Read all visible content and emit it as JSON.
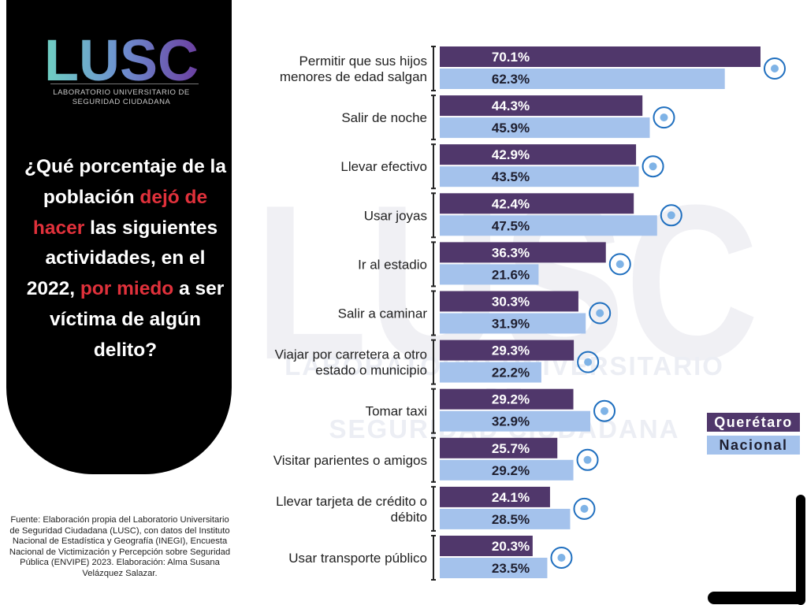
{
  "logo": {
    "text": "LUSC",
    "subtitle": "LABORATORIO UNIVERSITARIO DE SEGURIDAD CIUDADANA"
  },
  "question": {
    "part1": "¿Qué porcentaje de la población",
    "highlight1": "dejó de hacer",
    "part2": "las siguientes actividades, en el 2022,",
    "highlight2": "por miedo",
    "part3": "a ser víctima de algún delito?"
  },
  "source": "Fuente: Elaboración propia del Laboratorio Universitario de Seguridad Ciudadana (LUSC), con datos del Instituto Nacional de Estadística y Geografía (INEGI), Encuesta Nacional de Victimización y Percepción sobre Seguridad Pública (ENVIPE) 2023. Elaboración: Alma Susana Velázquez Salazar.",
  "watermark": {
    "line1": "LABORATORIO UNIVERSITARIO DE",
    "line2": "SEGURIDAD CIUDADANA"
  },
  "colors": {
    "queretaro": "#50376b",
    "nacional": "#a4c2ec",
    "highlight": "#e0313b"
  },
  "chart_data": {
    "type": "bar",
    "orientation": "horizontal",
    "title": "¿Qué porcentaje de la población dejó de hacer las siguientes actividades, en el 2022, por miedo a ser víctima de algún delito?",
    "categories": [
      "Permitir que sus hijos menores de edad salgan",
      "Salir de noche",
      "Llevar efectivo",
      "Usar joyas",
      "Ir al estadio",
      "Salir a caminar",
      "Viajar por carretera a otro estado o municipio",
      "Tomar taxi",
      "Visitar parientes o amigos",
      "Llevar tarjeta de crédito o débito",
      "Usar transporte público"
    ],
    "category_lines": [
      [
        "Permitir que sus hijos",
        "menores de edad salgan"
      ],
      [
        "Salir de noche"
      ],
      [
        "Llevar efectivo"
      ],
      [
        "Usar joyas"
      ],
      [
        "Ir al estadio"
      ],
      [
        "Salir a caminar"
      ],
      [
        "Viajar por carretera a otro",
        "estado o municipio"
      ],
      [
        "Tomar taxi"
      ],
      [
        "Visitar parientes o amigos"
      ],
      [
        "Llevar tarjeta de crédito o",
        "débito"
      ],
      [
        "Usar transporte público"
      ]
    ],
    "series": [
      {
        "name": "Querétaro",
        "values": [
          70.1,
          44.3,
          42.9,
          42.4,
          36.3,
          30.3,
          29.3,
          29.2,
          25.7,
          24.1,
          20.3
        ]
      },
      {
        "name": "Nacional",
        "values": [
          62.3,
          45.9,
          43.5,
          47.5,
          21.6,
          31.9,
          22.2,
          32.9,
          29.2,
          28.5,
          23.5
        ]
      }
    ],
    "value_suffix": "%",
    "xlim": [
      0,
      70.1
    ],
    "legend": [
      "Querétaro",
      "Nacional"
    ],
    "legend_position": "right",
    "icons": [
      "children-icon",
      "night-moon-icon",
      "cash-hand-icon",
      "jewelry-icon",
      "stadium-icon",
      "walking-people-icon",
      "road-icon",
      "taxi-icon",
      "door-visit-icon",
      "credit-card-icon",
      "bus-icon"
    ]
  }
}
